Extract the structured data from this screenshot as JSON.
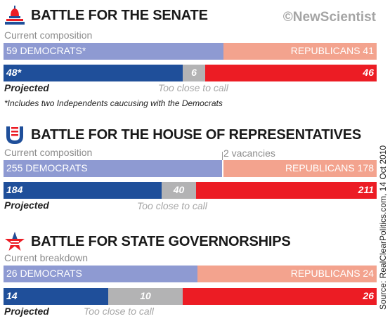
{
  "brand": "©NewScientist",
  "source": "Source: RealClearPolitics.com, 14 Oct 2010",
  "colors": {
    "dem_light": "#8e9ad2",
    "rep_light": "#f3a38e",
    "dem_dark": "#1f4f9a",
    "tossup": "#b3b3b4",
    "rep_dark": "#ec1c24"
  },
  "chart_data": [
    {
      "type": "bar",
      "title": "BATTLE FOR THE SENATE",
      "icon": "capitol-dome-icon",
      "current_label": "Current composition",
      "current": [
        {
          "name": "DEMOCRATS",
          "value": 59,
          "label": "59 DEMOCRATS*"
        },
        {
          "name": "REPUBLICANS",
          "value": 41,
          "label": "REPUBLICANS 41"
        }
      ],
      "vacancy_label": "",
      "projected_label": "Projected",
      "projected": [
        {
          "name": "DEMOCRATS",
          "value": 48,
          "label": "48*"
        },
        {
          "name": "Too close to call",
          "value": 6,
          "label": "6"
        },
        {
          "name": "REPUBLICANS",
          "value": 46,
          "label": "46"
        }
      ],
      "tossup_label": "Too close to call",
      "footnote": "*Includes two Independents caucusing with the Democrats"
    },
    {
      "type": "bar",
      "title": "BATTLE FOR THE HOUSE OF REPRESENTATIVES",
      "icon": "house-u-logo-icon",
      "current_label": "Current composition",
      "current": [
        {
          "name": "DEMOCRATS",
          "value": 255,
          "label": "255 DEMOCRATS"
        },
        {
          "name": "vacancies",
          "value": 2,
          "label": ""
        },
        {
          "name": "REPUBLICANS",
          "value": 178,
          "label": "REPUBLICANS 178"
        }
      ],
      "vacancy_label": "2 vacancies",
      "projected_label": "Projected",
      "projected": [
        {
          "name": "DEMOCRATS",
          "value": 184,
          "label": "184"
        },
        {
          "name": "Too close to call",
          "value": 40,
          "label": "40"
        },
        {
          "name": "REPUBLICANS",
          "value": 211,
          "label": "211"
        }
      ],
      "tossup_label": "Too close to call",
      "footnote": ""
    },
    {
      "type": "bar",
      "title": "BATTLE FOR STATE GOVERNORSHIPS",
      "icon": "star-flag-icon",
      "current_label": "Current breakdown",
      "current": [
        {
          "name": "DEMOCRATS",
          "value": 26,
          "label": "26 DEMOCRATS"
        },
        {
          "name": "REPUBLICANS",
          "value": 24,
          "label": "REPUBLICANS 24"
        }
      ],
      "vacancy_label": "",
      "projected_label": "Projected",
      "projected": [
        {
          "name": "DEMOCRATS",
          "value": 14,
          "label": "14"
        },
        {
          "name": "Too close to call",
          "value": 10,
          "label": "10"
        },
        {
          "name": "REPUBLICANS",
          "value": 26,
          "label": "26"
        }
      ],
      "tossup_label": "Too close to call",
      "footnote": ""
    }
  ]
}
